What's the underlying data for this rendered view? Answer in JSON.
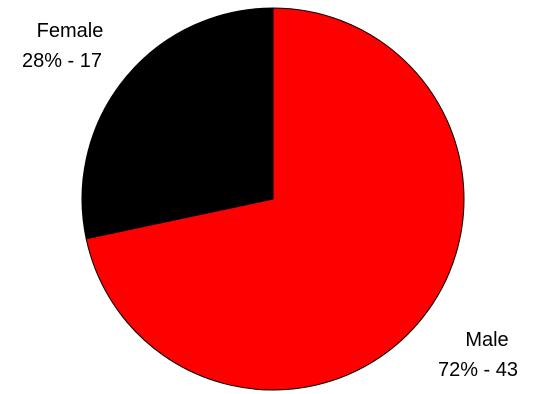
{
  "chart_data": {
    "type": "pie",
    "title": "",
    "categories": [
      "Male",
      "Female"
    ],
    "values": [
      43,
      17
    ],
    "percentages": [
      72,
      28
    ],
    "labels": [
      {
        "name": "Male",
        "detail": "72% - 43"
      },
      {
        "name": "Female",
        "detail": "28% - 17"
      }
    ],
    "colors": [
      "#ff0000",
      "#000000"
    ],
    "legend": "none"
  }
}
